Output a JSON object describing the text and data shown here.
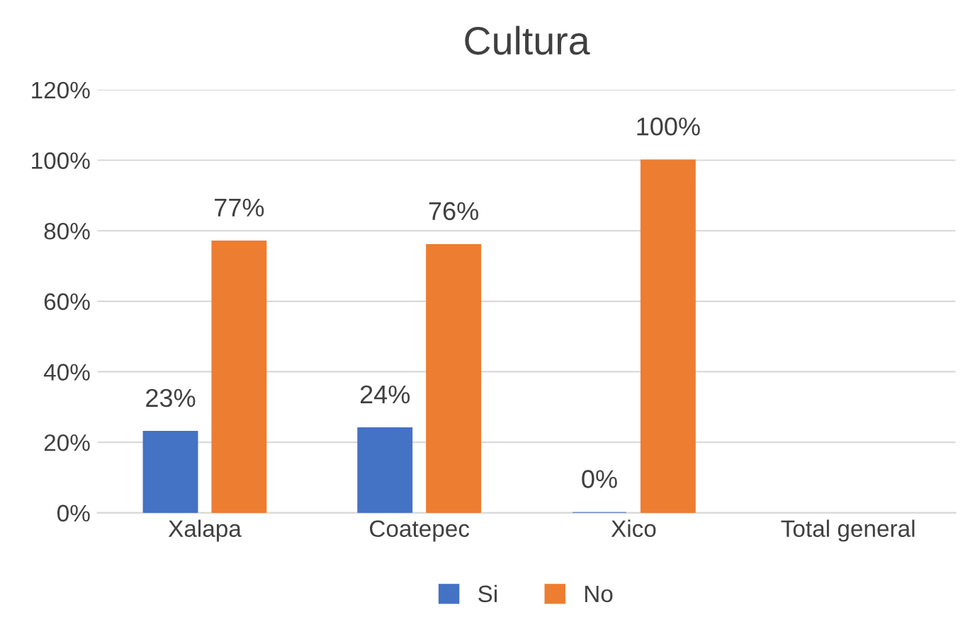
{
  "chart_data": {
    "type": "bar",
    "title": "Cultura",
    "categories": [
      "Xalapa",
      "Coatepec",
      "Xico",
      "Total general"
    ],
    "series": [
      {
        "name": "Si",
        "color": "#4472c4",
        "values": [
          23,
          24,
          0,
          null
        ],
        "value_labels": [
          "23%",
          "24%",
          "0%",
          null
        ]
      },
      {
        "name": "No",
        "color": "#ed7d31",
        "values": [
          77,
          76,
          100,
          null
        ],
        "value_labels": [
          "77%",
          "76%",
          "100%",
          null
        ]
      }
    ],
    "ylim": [
      0,
      120
    ],
    "yticks": [
      {
        "value": 0,
        "label": "0%"
      },
      {
        "value": 20,
        "label": "20%"
      },
      {
        "value": 40,
        "label": "40%"
      },
      {
        "value": 60,
        "label": "60%"
      },
      {
        "value": 80,
        "label": "80%"
      },
      {
        "value": 100,
        "label": "100%"
      },
      {
        "value": 120,
        "label": "120%"
      }
    ],
    "grid": "y",
    "legend": "bottom"
  }
}
